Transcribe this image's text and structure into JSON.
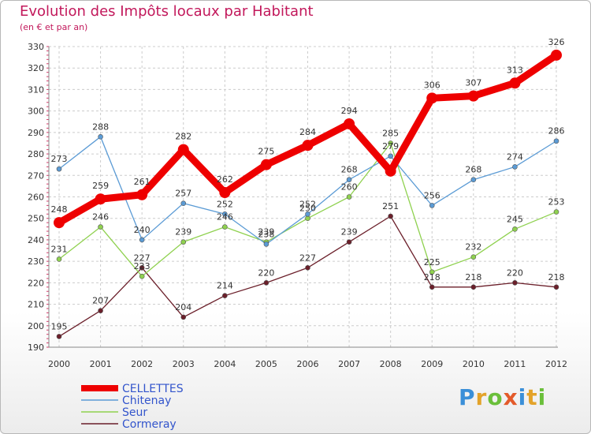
{
  "header": {
    "title": "Evolution des Impôts locaux par Habitant",
    "subtitle": "(en € et par an)"
  },
  "logo": {
    "text": "Proxiti",
    "letters": [
      {
        "ch": "P",
        "color": "#3a8fd8"
      },
      {
        "ch": "r",
        "color": "#e3a32a"
      },
      {
        "ch": "o",
        "color": "#6abf3a"
      },
      {
        "ch": "x",
        "color": "#e35a2a"
      },
      {
        "ch": "i",
        "color": "#3a8fd8"
      },
      {
        "ch": "t",
        "color": "#e3a32a"
      },
      {
        "ch": "i",
        "color": "#6abf3a"
      }
    ]
  },
  "chart_data": {
    "type": "line",
    "title": "Evolution des Impôts locaux par Habitant",
    "subtitle": "(en € et par an)",
    "xlabel": "",
    "ylabel": "",
    "x": [
      "2000",
      "2001",
      "2002",
      "2003",
      "2004",
      "2005",
      "2006",
      "2007",
      "2008",
      "2009",
      "2010",
      "2011",
      "2012"
    ],
    "ylim": [
      190,
      330
    ],
    "yticks": [
      190,
      200,
      210,
      220,
      230,
      240,
      250,
      260,
      270,
      280,
      290,
      300,
      310,
      320,
      330
    ],
    "grid": true,
    "legend_position": "bottom-left",
    "series": [
      {
        "name": "CELLETTES",
        "color": "#ee0000",
        "values": [
          248,
          259,
          261,
          282,
          262,
          275,
          284,
          294,
          272,
          306,
          307,
          313,
          326
        ],
        "labels": [
          "248",
          "259",
          "261",
          "282",
          "262",
          "275",
          "284",
          "294",
          "",
          "306",
          "307",
          "313",
          "326"
        ]
      },
      {
        "name": "Chitenay",
        "color": "#5b9bd5",
        "values": [
          273,
          288,
          240,
          257,
          252,
          238,
          252,
          268,
          279,
          256,
          268,
          274,
          286
        ],
        "labels": [
          "273",
          "288",
          "240",
          "257",
          "252",
          "238",
          "252",
          "268",
          "279",
          "256",
          "268",
          "274",
          "286"
        ]
      },
      {
        "name": "Seur",
        "color": "#8fd14f",
        "values": [
          231,
          246,
          223,
          239,
          246,
          239,
          250,
          260,
          285,
          225,
          232,
          245,
          253
        ],
        "labels": [
          "231",
          "246",
          "223",
          "239",
          "246",
          "239",
          "250",
          "260",
          "285",
          "225",
          "232",
          "245",
          "253"
        ]
      },
      {
        "name": "Cormeray",
        "color": "#6b1f2a",
        "values": [
          195,
          207,
          227,
          204,
          214,
          220,
          227,
          239,
          251,
          218,
          218,
          220,
          218
        ],
        "labels": [
          "195",
          "207",
          "227",
          "204",
          "214",
          "220",
          "227",
          "239",
          "251",
          "218",
          "218",
          "220",
          "218"
        ]
      }
    ]
  }
}
